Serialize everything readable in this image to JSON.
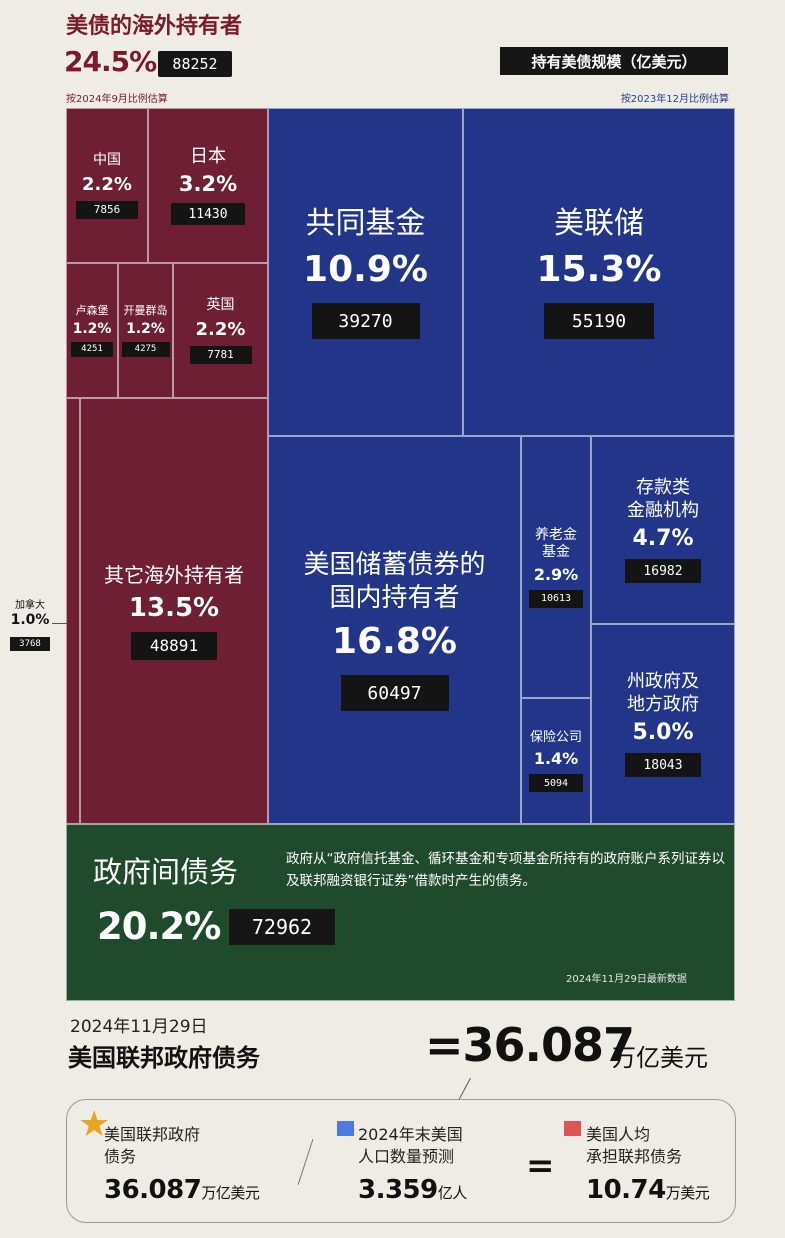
{
  "header": {
    "title": "美债的海外持有者",
    "foreign_pct": "24.5%",
    "foreign_value": "88252",
    "legend_label": "持有美债规模（亿美元）",
    "note_left": "按2024年9月比例估算",
    "note_right": "按2023年12月比例估算"
  },
  "chart_data": {
    "type": "treemap",
    "unit": "亿美元",
    "cells": [
      {
        "id": "china",
        "name": "中国",
        "pct": "2.2%",
        "value": 7856,
        "group": "foreign"
      },
      {
        "id": "japan",
        "name": "日本",
        "pct": "3.2%",
        "value": 11430,
        "group": "foreign"
      },
      {
        "id": "luxembourg",
        "name": "卢森堡",
        "pct": "1.2%",
        "value": 4251,
        "group": "foreign"
      },
      {
        "id": "cayman",
        "name": "开曼群岛",
        "pct": "1.2%",
        "value": 4275,
        "group": "foreign"
      },
      {
        "id": "uk",
        "name": "英国",
        "pct": "2.2%",
        "value": 7781,
        "group": "foreign"
      },
      {
        "id": "canada",
        "name": "加拿大",
        "pct": "1.0%",
        "value": 3768,
        "group": "foreign"
      },
      {
        "id": "other_foreign",
        "name": "其它海外持有者",
        "pct": "13.5%",
        "value": 48891,
        "group": "foreign"
      },
      {
        "id": "mutual_funds",
        "name": "共同基金",
        "pct": "10.9%",
        "value": 39270,
        "group": "domestic"
      },
      {
        "id": "fed",
        "name": "美联储",
        "pct": "15.3%",
        "value": 55190,
        "group": "domestic"
      },
      {
        "id": "domestic_savings",
        "name": "美国储蓄债券的国内持有者",
        "pct": "16.8%",
        "value": 60497,
        "group": "domestic"
      },
      {
        "id": "pension",
        "name": "养老金基金",
        "pct": "2.9%",
        "value": 10613,
        "group": "domestic"
      },
      {
        "id": "depository",
        "name": "存款类金融机构",
        "pct": "4.7%",
        "value": 16982,
        "group": "domestic"
      },
      {
        "id": "insurance",
        "name": "保险公司",
        "pct": "1.4%",
        "value": 5094,
        "group": "domestic"
      },
      {
        "id": "state_local",
        "name": "州政府及地方政府",
        "pct": "5.0%",
        "value": 18043,
        "group": "domestic"
      },
      {
        "id": "intragov",
        "name": "政府间债务",
        "pct": "20.2%",
        "value": 72962,
        "group": "intragovernmental"
      }
    ],
    "colors": {
      "foreign": "#6e1f33",
      "domestic": "#223589",
      "intragovernmental": "#1f4a2c"
    }
  },
  "canada": {
    "name": "加拿大",
    "pct": "1.0%",
    "value": "3768"
  },
  "gov": {
    "desc": "政府从“政府信托基金、循环基金和专项基金所持有的政府账户系列证券以及联邦融资银行证券”借款时产生的债务。",
    "date_note": "2024年11月29日最新数据"
  },
  "total": {
    "date": "2024年11月29日",
    "label": "美国联邦政府债务",
    "value": "=36.087",
    "unit": "万亿美元"
  },
  "summary": {
    "debt_label_1": "美国联邦政府",
    "debt_label_2": "债务",
    "debt_value": "36.087",
    "debt_unit": "万亿美元",
    "pop_label_1": "2024年末美国",
    "pop_label_2": "人口数量预测",
    "pop_value": "3.359",
    "pop_unit": "亿人",
    "per_label_1": "美国人均",
    "per_label_2": "承担联邦债务",
    "per_value": "10.74",
    "per_unit": "万美元",
    "equals": "="
  }
}
